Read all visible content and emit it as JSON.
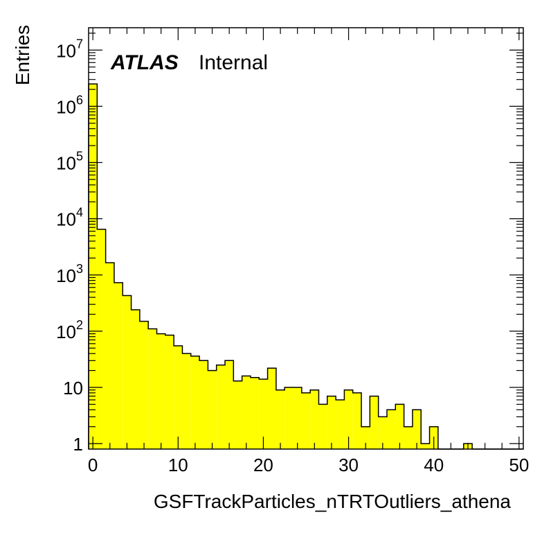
{
  "chart_data": {
    "type": "bar",
    "style": "histogram",
    "fill_color": "#ffff00",
    "line_color": "#000000",
    "xlabel": "GSFTrackParticles_nTRTOutliers_athena",
    "ylabel": "Entries",
    "label_bold": "ATLAS",
    "label_normal": "Internal",
    "xlim": [
      -0.5,
      50.5
    ],
    "ylim": [
      0.8,
      25000000
    ],
    "yscale": "log",
    "grid": false,
    "x_ticks": [
      {
        "value": 0,
        "label": "0"
      },
      {
        "value": 10,
        "label": "10"
      },
      {
        "value": 20,
        "label": "20"
      },
      {
        "value": 30,
        "label": "30"
      },
      {
        "value": 40,
        "label": "40"
      },
      {
        "value": 50,
        "label": "50"
      }
    ],
    "y_ticks": [
      {
        "value": 1,
        "label": "1"
      },
      {
        "value": 10,
        "label": "10"
      },
      {
        "value": 100,
        "base": "10",
        "exp": "2"
      },
      {
        "value": 1000,
        "base": "10",
        "exp": "3"
      },
      {
        "value": 10000,
        "base": "10",
        "exp": "4"
      },
      {
        "value": 100000,
        "base": "10",
        "exp": "5"
      },
      {
        "value": 1000000,
        "base": "10",
        "exp": "6"
      },
      {
        "value": 10000000,
        "base": "10",
        "exp": "7"
      }
    ],
    "bin_width": 1,
    "bins": [
      0,
      1,
      2,
      3,
      4,
      5,
      6,
      7,
      8,
      9,
      10,
      11,
      12,
      13,
      14,
      15,
      16,
      17,
      18,
      19,
      20,
      21,
      22,
      23,
      24,
      25,
      26,
      27,
      28,
      29,
      30,
      31,
      32,
      33,
      34,
      35,
      36,
      37,
      38,
      39,
      40,
      41,
      42,
      43,
      44,
      45,
      46,
      47,
      48,
      49,
      50
    ],
    "values": [
      2500000,
      6500,
      1650,
      730,
      430,
      240,
      150,
      110,
      90,
      85,
      55,
      40,
      36,
      30,
      20,
      25,
      30,
      13,
      16,
      15,
      14,
      22,
      9,
      10,
      10,
      8,
      9,
      5,
      7,
      6,
      9,
      8,
      2,
      7,
      3,
      4,
      5,
      2,
      4,
      1,
      2,
      0,
      0,
      0,
      1,
      0,
      0,
      0,
      0,
      0,
      0
    ]
  }
}
